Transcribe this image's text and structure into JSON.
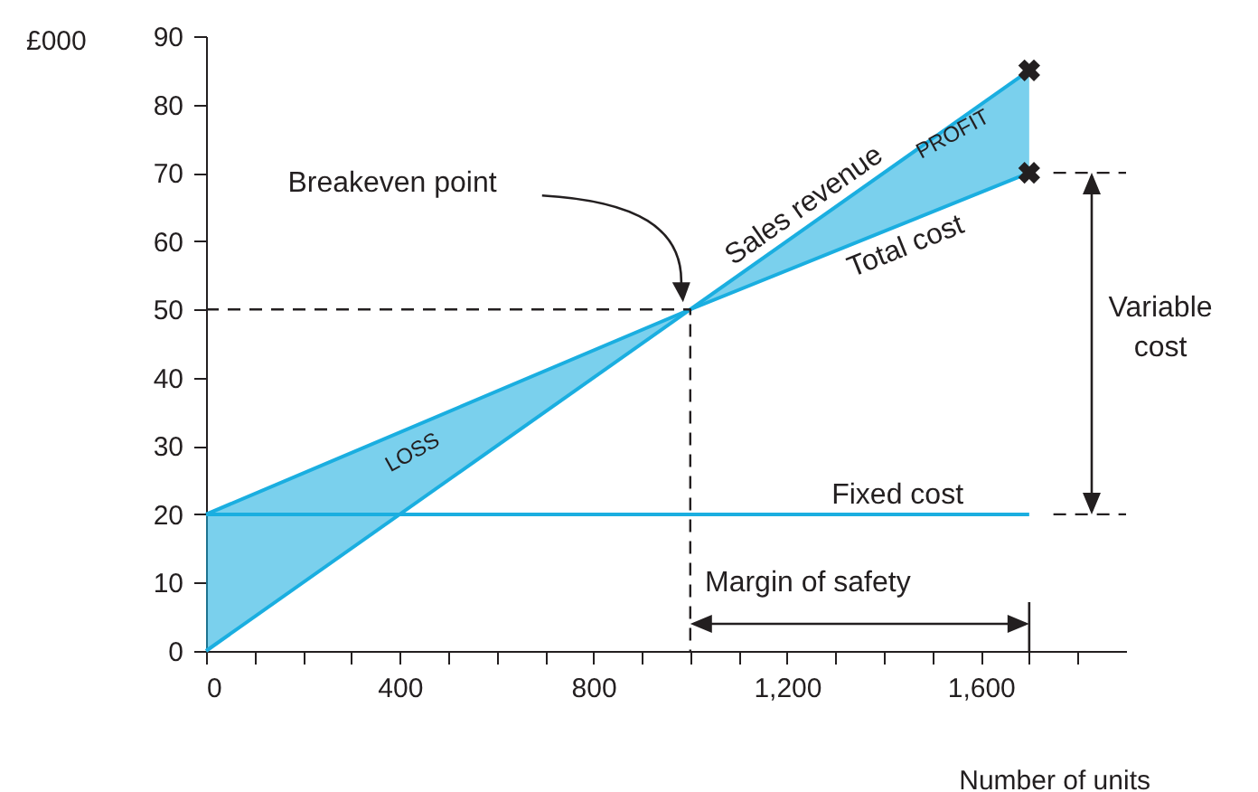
{
  "chart_data": {
    "type": "line",
    "ylabel": "£000",
    "xlabel": "Number of units",
    "xlim": [
      0,
      1900
    ],
    "ylim": [
      0,
      90
    ],
    "xticks": [
      0,
      {
        "value": 100,
        "label": null
      },
      {
        "value": 200,
        "label": null
      },
      {
        "value": 300,
        "label": null
      },
      400,
      {
        "value": 500,
        "label": null
      },
      {
        "value": 600,
        "label": null
      },
      {
        "value": 700,
        "label": null
      },
      800,
      {
        "value": 900,
        "label": null
      },
      {
        "value": 1000,
        "label": null
      },
      {
        "value": 1100,
        "label": null
      },
      {
        "value": 1200,
        "label": "1,200"
      },
      {
        "value": 1300,
        "label": null
      },
      {
        "value": 1400,
        "label": null
      },
      {
        "value": 1500,
        "label": null
      },
      {
        "value": 1600,
        "label": "1,600"
      },
      {
        "value": 1700,
        "label": null
      },
      {
        "value": 1800,
        "label": null
      }
    ],
    "yticks": [
      0,
      10,
      20,
      30,
      40,
      50,
      60,
      70,
      80,
      90
    ],
    "series": [
      {
        "name": "Sales revenue",
        "color": "#1aaee0",
        "x": [
          0,
          1700
        ],
        "values": [
          0,
          85
        ]
      },
      {
        "name": "Total cost",
        "color": "#1aaee0",
        "x": [
          0,
          1000,
          1700
        ],
        "values": [
          20,
          50,
          70
        ],
        "lower": [
          0,
          50,
          70
        ],
        "upper": [
          20,
          50,
          85
        ]
      },
      {
        "name": "Fixed cost",
        "color": "#1aaee0",
        "x": [
          0,
          1700
        ],
        "values": [
          20,
          20
        ]
      },
      {
        "type": "scatter",
        "marker": "cross",
        "color": "#231f20",
        "x": [
          1700,
          1700
        ],
        "values": [
          85,
          70
        ]
      },
      {
        "type": "line",
        "line_style": "dashed",
        "color": "#231f20",
        "x": [
          0,
          1000,
          1000
        ],
        "values": [
          50,
          50,
          0
        ]
      },
      {
        "type": "line",
        "line_style": "dashed",
        "color": "#231f20",
        "x": [
          1750,
          1900
        ],
        "values": [
          70,
          70
        ]
      },
      {
        "type": "line",
        "line_style": "dashed",
        "color": "#231f20",
        "x": [
          1750,
          1900
        ],
        "values": [
          20,
          20
        ]
      }
    ],
    "annotations": [
      "Breakeven point",
      "Margin of safety",
      "Variable cost",
      "LOSS",
      "PROFIT"
    ]
  }
}
